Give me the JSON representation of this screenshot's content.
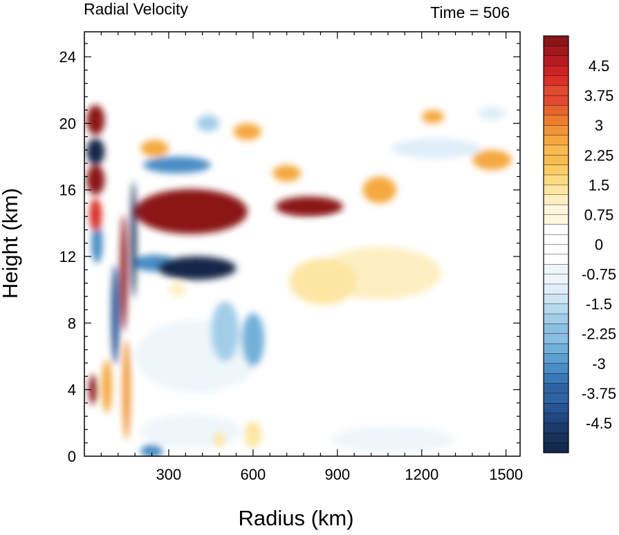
{
  "chart_data": {
    "type": "heatmap",
    "title_left": "Radial Velocity",
    "title_right": "Time = 506",
    "xlabel": "Radius (km)",
    "ylabel": "Height (km)",
    "xlim": [
      0,
      1550
    ],
    "ylim": [
      0,
      25.5
    ],
    "x_ticks": [
      "300",
      "600",
      "900",
      "1200",
      "1500"
    ],
    "x_tick_values": [
      300,
      600,
      900,
      1200,
      1500
    ],
    "y_ticks": [
      "0",
      "4",
      "8",
      "12",
      "16",
      "20",
      "24"
    ],
    "y_tick_values": [
      0,
      4,
      8,
      12,
      16,
      20,
      24
    ],
    "colorbar": {
      "labels": [
        "4.5",
        "3.75",
        "3",
        "2.25",
        "1.5",
        "0.75",
        "0",
        "-0.75",
        "-1.5",
        "-2.25",
        "-3",
        "-3.75",
        "-4.5"
      ],
      "label_values": [
        4.5,
        3.75,
        3,
        2.25,
        1.5,
        0.75,
        0,
        -0.75,
        -1.5,
        -2.25,
        -3,
        -3.75,
        -4.5
      ],
      "range": [
        -5.25,
        5.25
      ],
      "step": 0.25
    },
    "features": [
      {
        "r": 40,
        "z": 20.2,
        "rx": 32,
        "rz": 0.9,
        "v": 6
      },
      {
        "r": 40,
        "z": 18.3,
        "rx": 32,
        "rz": 0.8,
        "v": -5.5
      },
      {
        "r": 40,
        "z": 16.6,
        "rx": 32,
        "rz": 0.9,
        "v": 6
      },
      {
        "r": 40,
        "z": 14.5,
        "rx": 22,
        "rz": 1.0,
        "v": 4
      },
      {
        "r": 45,
        "z": 12.8,
        "rx": 20,
        "rz": 1.2,
        "v": -3
      },
      {
        "r": 30,
        "z": 4.0,
        "rx": 14,
        "rz": 0.9,
        "v": 6
      },
      {
        "r": 80,
        "z": 4.2,
        "rx": 18,
        "rz": 1.6,
        "v": 2.5
      },
      {
        "r": 140,
        "z": 11.0,
        "rx": 12,
        "rz": 3.5,
        "v": 6
      },
      {
        "r": 150,
        "z": 4.0,
        "rx": 14,
        "rz": 3.0,
        "v": 3
      },
      {
        "r": 110,
        "z": 8.5,
        "rx": 14,
        "rz": 3.0,
        "v": -4
      },
      {
        "r": 175,
        "z": 13.0,
        "rx": 10,
        "rz": 3.5,
        "v": -5
      },
      {
        "r": 380,
        "z": 14.7,
        "rx": 200,
        "rz": 1.35,
        "v": 9
      },
      {
        "r": 800,
        "z": 15.0,
        "rx": 120,
        "rz": 0.6,
        "v": 6
      },
      {
        "r": 330,
        "z": 17.5,
        "rx": 120,
        "rz": 0.5,
        "v": -3
      },
      {
        "r": 400,
        "z": 11.3,
        "rx": 140,
        "rz": 0.7,
        "v": -6
      },
      {
        "r": 250,
        "z": 11.6,
        "rx": 80,
        "rz": 0.5,
        "v": -3
      },
      {
        "r": 1050,
        "z": 16.0,
        "rx": 60,
        "rz": 0.8,
        "v": 2.5
      },
      {
        "r": 1450,
        "z": 17.8,
        "rx": 70,
        "rz": 0.6,
        "v": 2.5
      },
      {
        "r": 1240,
        "z": 20.4,
        "rx": 40,
        "rz": 0.4,
        "v": 2.5
      },
      {
        "r": 1250,
        "z": 18.5,
        "rx": 160,
        "rz": 0.6,
        "v": -1
      },
      {
        "r": 1450,
        "z": 20.6,
        "rx": 50,
        "rz": 0.4,
        "v": -1
      },
      {
        "r": 850,
        "z": 10.5,
        "rx": 120,
        "rz": 1.4,
        "v": 1.5
      },
      {
        "r": 1050,
        "z": 11.0,
        "rx": 220,
        "rz": 1.6,
        "v": 1.0
      },
      {
        "r": 900,
        "z": 13.0,
        "rx": 300,
        "rz": 1.0,
        "v": 0.6
      },
      {
        "r": 580,
        "z": 19.5,
        "rx": 50,
        "rz": 0.5,
        "v": 2.5
      },
      {
        "r": 720,
        "z": 17.0,
        "rx": 50,
        "rz": 0.5,
        "v": 2.5
      },
      {
        "r": 440,
        "z": 20.0,
        "rx": 40,
        "rz": 0.5,
        "v": -2
      },
      {
        "r": 250,
        "z": 18.5,
        "rx": 50,
        "rz": 0.5,
        "v": 2.5
      },
      {
        "r": 500,
        "z": 7.5,
        "rx": 50,
        "rz": 1.8,
        "v": -2
      },
      {
        "r": 600,
        "z": 7.0,
        "rx": 40,
        "rz": 1.6,
        "v": -2.5
      },
      {
        "r": 400,
        "z": 6.0,
        "rx": 220,
        "rz": 2.2,
        "v": -0.8
      },
      {
        "r": 380,
        "z": 1.5,
        "rx": 180,
        "rz": 1.0,
        "v": -0.7
      },
      {
        "r": 240,
        "z": 0.3,
        "rx": 40,
        "rz": 0.4,
        "v": -3
      },
      {
        "r": 600,
        "z": 1.3,
        "rx": 30,
        "rz": 0.8,
        "v": 1.2
      },
      {
        "r": 480,
        "z": 1.0,
        "rx": 20,
        "rz": 0.5,
        "v": 1.2
      },
      {
        "r": 1100,
        "z": 1.0,
        "rx": 220,
        "rz": 0.8,
        "v": -0.6
      },
      {
        "r": 330,
        "z": 10.0,
        "rx": 30,
        "rz": 0.4,
        "v": 1.0
      }
    ]
  }
}
